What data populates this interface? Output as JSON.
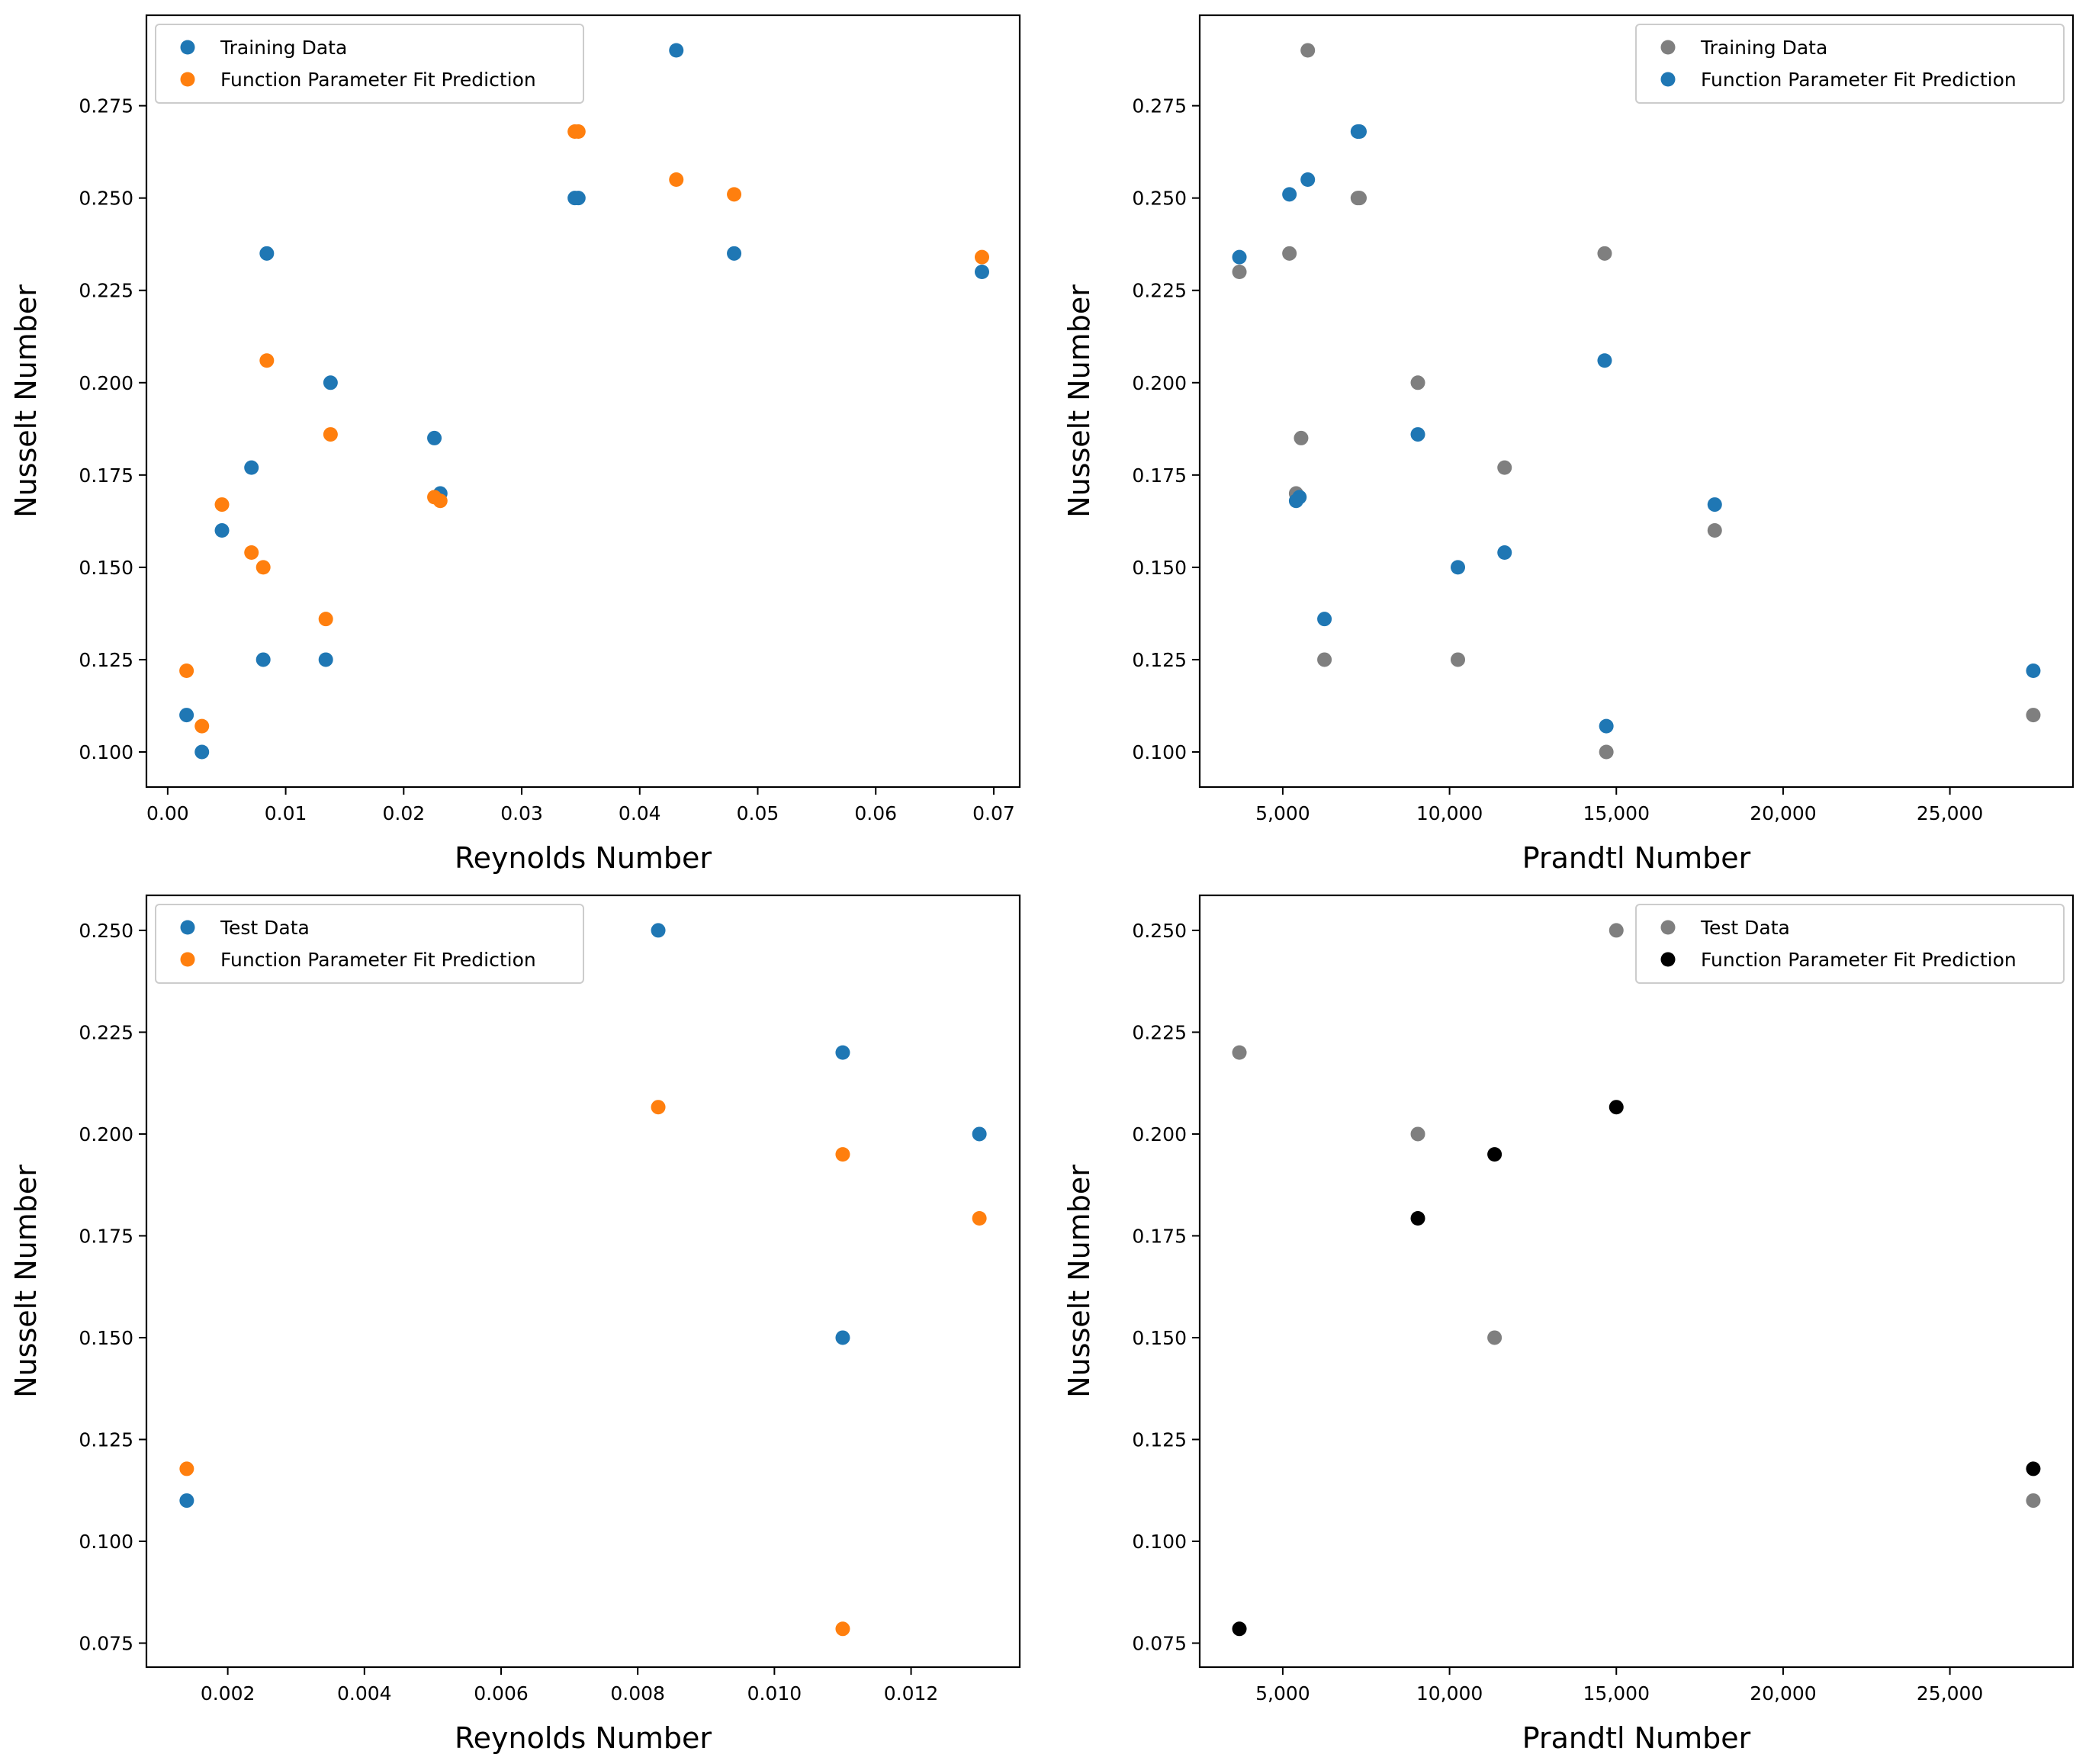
{
  "chart_data": [
    {
      "type": "scatter",
      "title": "",
      "xlabel": "Reynolds Number",
      "ylabel": "Nusselt Number",
      "xlim": [
        -0.0018,
        0.0722
      ],
      "ylim": [
        0.0905,
        0.2995
      ],
      "xticks": [
        0.0,
        0.01,
        0.02,
        0.03,
        0.04,
        0.05,
        0.06,
        0.07
      ],
      "xtick_labels": [
        "0.00",
        "0.01",
        "0.02",
        "0.03",
        "0.04",
        "0.05",
        "0.06",
        "0.07"
      ],
      "yticks": [
        0.1,
        0.125,
        0.15,
        0.175,
        0.2,
        0.225,
        0.25,
        0.275
      ],
      "ytick_labels": [
        "0.100",
        "0.125",
        "0.150",
        "0.175",
        "0.200",
        "0.225",
        "0.250",
        "0.275"
      ],
      "legend_position": "top-left",
      "series": [
        {
          "name": "Training Data",
          "color": "#1f77b4",
          "x": [
            0.0016,
            0.0029,
            0.0046,
            0.0071,
            0.0081,
            0.0084,
            0.0134,
            0.0138,
            0.0226,
            0.0231,
            0.0345,
            0.0348,
            0.0431,
            0.048,
            0.069
          ],
          "y": [
            0.11,
            0.1,
            0.16,
            0.177,
            0.125,
            0.235,
            0.125,
            0.2,
            0.185,
            0.17,
            0.25,
            0.25,
            0.29,
            0.235,
            0.23
          ]
        },
        {
          "name": "Function Parameter Fit Prediction",
          "color": "#ff7f0e",
          "x": [
            0.0016,
            0.0029,
            0.0046,
            0.0071,
            0.0081,
            0.0084,
            0.0134,
            0.0138,
            0.0226,
            0.0231,
            0.0345,
            0.0348,
            0.0431,
            0.048,
            0.069
          ],
          "y": [
            0.122,
            0.107,
            0.167,
            0.154,
            0.15,
            0.206,
            0.136,
            0.186,
            0.169,
            0.168,
            0.268,
            0.268,
            0.255,
            0.251,
            0.234
          ]
        }
      ]
    },
    {
      "type": "scatter",
      "title": "",
      "xlabel": "Prandtl Number",
      "ylabel": "Nusselt Number",
      "xlim": [
        2510,
        28690
      ],
      "ylim": [
        0.0905,
        0.2995
      ],
      "xticks": [
        5000,
        10000,
        15000,
        20000,
        25000
      ],
      "xtick_labels": [
        "5,000",
        "10,000",
        "15,000",
        "20,000",
        "25,000"
      ],
      "yticks": [
        0.1,
        0.125,
        0.15,
        0.175,
        0.2,
        0.225,
        0.25,
        0.275
      ],
      "ytick_labels": [
        "0.100",
        "0.125",
        "0.150",
        "0.175",
        "0.200",
        "0.225",
        "0.250",
        "0.275"
      ],
      "legend_position": "top-right",
      "series": [
        {
          "name": "Training Data",
          "color": "#7f7f7f",
          "x": [
            27500,
            14700,
            17950,
            11650,
            10250,
            5200,
            6250,
            9050,
            5550,
            5400,
            7250,
            7300,
            5750,
            14650,
            3700
          ],
          "y": [
            0.11,
            0.1,
            0.16,
            0.177,
            0.125,
            0.235,
            0.125,
            0.2,
            0.185,
            0.17,
            0.25,
            0.25,
            0.29,
            0.235,
            0.23
          ]
        },
        {
          "name": "Function Parameter Fit Prediction",
          "color": "#1f77b4",
          "x": [
            27500,
            14700,
            17950,
            11650,
            10250,
            14650,
            6250,
            9050,
            5500,
            5400,
            7250,
            7300,
            5750,
            5200,
            3700
          ],
          "y": [
            0.122,
            0.107,
            0.167,
            0.154,
            0.15,
            0.206,
            0.136,
            0.186,
            0.169,
            0.168,
            0.268,
            0.268,
            0.255,
            0.251,
            0.234
          ]
        }
      ]
    },
    {
      "type": "scatter",
      "title": "",
      "xlabel": "Reynolds Number",
      "ylabel": "Nusselt Number",
      "xlim": [
        0.00081,
        0.01359
      ],
      "ylim": [
        0.0691,
        0.2586
      ],
      "xticks": [
        0.002,
        0.004,
        0.006,
        0.008,
        0.01,
        0.012
      ],
      "xtick_labels": [
        "0.002",
        "0.004",
        "0.006",
        "0.008",
        "0.010",
        "0.012"
      ],
      "yticks": [
        0.075,
        0.1,
        0.125,
        0.15,
        0.175,
        0.2,
        0.225,
        0.25
      ],
      "ytick_labels": [
        "0.075",
        "0.100",
        "0.125",
        "0.150",
        "0.175",
        "0.200",
        "0.225",
        "0.250"
      ],
      "legend_position": "top-left",
      "series": [
        {
          "name": "Test Data",
          "color": "#1f77b4",
          "x": [
            0.0014,
            0.0083,
            0.011,
            0.011,
            0.013
          ],
          "y": [
            0.11,
            0.25,
            0.22,
            0.15,
            0.2
          ]
        },
        {
          "name": "Function Parameter Fit Prediction",
          "color": "#ff7f0e",
          "x": [
            0.0014,
            0.0083,
            0.011,
            0.011,
            0.013
          ],
          "y": [
            0.1178,
            0.2066,
            0.195,
            0.0785,
            0.1793
          ]
        }
      ]
    },
    {
      "type": "scatter",
      "title": "",
      "xlabel": "Prandtl Number",
      "ylabel": "Nusselt Number",
      "xlim": [
        2510,
        28690
      ],
      "ylim": [
        0.0691,
        0.2586
      ],
      "xticks": [
        5000,
        10000,
        15000,
        20000,
        25000
      ],
      "xtick_labels": [
        "5,000",
        "10,000",
        "15,000",
        "20,000",
        "25,000"
      ],
      "yticks": [
        0.075,
        0.1,
        0.125,
        0.15,
        0.175,
        0.2,
        0.225,
        0.25
      ],
      "ytick_labels": [
        "0.075",
        "0.100",
        "0.125",
        "0.150",
        "0.175",
        "0.200",
        "0.225",
        "0.250"
      ],
      "legend_position": "top-right",
      "series": [
        {
          "name": "Test Data",
          "color": "#7f7f7f",
          "x": [
            3700,
            9050,
            11350,
            15000,
            27500
          ],
          "y": [
            0.22,
            0.2,
            0.15,
            0.25,
            0.11
          ]
        },
        {
          "name": "Function Parameter Fit Prediction",
          "color": "#000000",
          "x": [
            3700,
            9050,
            11350,
            15000,
            27500
          ],
          "y": [
            0.0785,
            0.1793,
            0.195,
            0.2066,
            0.1178
          ]
        }
      ]
    }
  ]
}
